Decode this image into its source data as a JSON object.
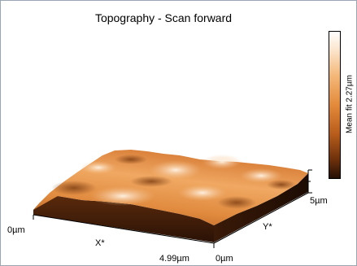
{
  "title": "Topography - Scan forward",
  "colorbar": {
    "label": "Mean fit 2.27µm"
  },
  "axes": {
    "x_origin": "0µm",
    "x_end": "4.99µm",
    "x_name": "X*",
    "y_origin": "0µm",
    "y_end": "5µm",
    "y_name": "Y*"
  },
  "colors": {
    "high": "#ffffff",
    "mid": "#e38a3a",
    "low": "#241005",
    "frame": "#9aa6b4"
  }
}
